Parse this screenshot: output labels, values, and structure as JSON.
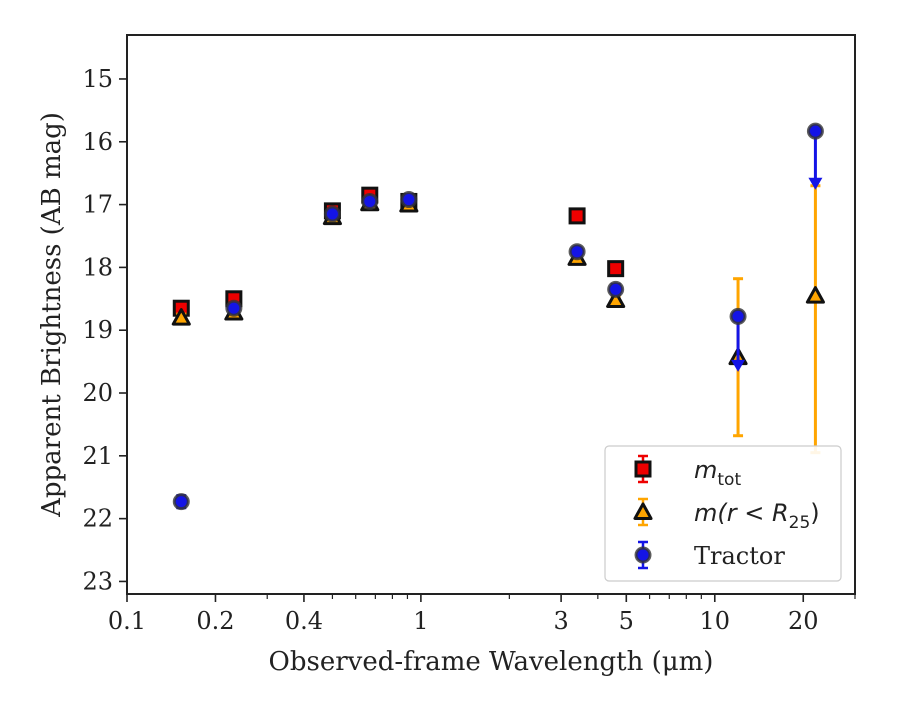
{
  "chart_data": {
    "type": "scatter",
    "xlabel": "Observed-frame Wavelength (μm)",
    "ylabel": "Apparent Brightness (AB mag)",
    "x_scale": "log",
    "xlim": [
      0.1,
      30
    ],
    "ylim": [
      23.2,
      14.3
    ],
    "y_inverted": true,
    "x_ticks": [
      {
        "value": 0.1,
        "label": "0.1"
      },
      {
        "value": 0.2,
        "label": "0.2"
      },
      {
        "value": 0.4,
        "label": "0.4"
      },
      {
        "value": 1,
        "label": "1"
      },
      {
        "value": 3,
        "label": "3"
      },
      {
        "value": 5,
        "label": "5"
      },
      {
        "value": 10,
        "label": "10"
      },
      {
        "value": 20,
        "label": "20"
      }
    ],
    "y_ticks": [
      {
        "value": 15,
        "label": "15"
      },
      {
        "value": 16,
        "label": "16"
      },
      {
        "value": 17,
        "label": "17"
      },
      {
        "value": 18,
        "label": "18"
      },
      {
        "value": 19,
        "label": "19"
      },
      {
        "value": 20,
        "label": "20"
      },
      {
        "value": 21,
        "label": "21"
      },
      {
        "value": 22,
        "label": "22"
      },
      {
        "value": 23,
        "label": "23"
      }
    ],
    "grid": false,
    "legend_position": "lower-right",
    "series": [
      {
        "name": "m_tot",
        "legend_main": "m",
        "legend_sub": "tot",
        "marker": "square",
        "color": "#ee0000",
        "points": [
          {
            "x": 0.153,
            "y": 18.65,
            "err": 0.06
          },
          {
            "x": 0.231,
            "y": 18.5,
            "err": 0.05
          },
          {
            "x": 0.5,
            "y": 17.1,
            "err": 0.04
          },
          {
            "x": 0.67,
            "y": 16.85,
            "err": 0.04
          },
          {
            "x": 0.91,
            "y": 16.95,
            "err": 0.04
          },
          {
            "x": 3.4,
            "y": 17.18,
            "err": 0.04
          },
          {
            "x": 4.6,
            "y": 18.02,
            "err": 0.05
          }
        ]
      },
      {
        "name": "m(r < R_25)",
        "legend_main": "m(r < R",
        "legend_sub": "25",
        "legend_tail": ")",
        "marker": "triangle",
        "color": "#ffa500",
        "points": [
          {
            "x": 0.153,
            "y": 18.8,
            "err": 0.06
          },
          {
            "x": 0.231,
            "y": 18.72,
            "err": 0.05
          },
          {
            "x": 0.5,
            "y": 17.2,
            "err": 0.04
          },
          {
            "x": 0.67,
            "y": 16.98,
            "err": 0.04
          },
          {
            "x": 0.91,
            "y": 17.0,
            "err": 0.04
          },
          {
            "x": 3.4,
            "y": 17.85,
            "err": 0.05
          },
          {
            "x": 4.6,
            "y": 18.52,
            "err": 0.06
          },
          {
            "x": 12.0,
            "y": 19.43,
            "err_low": 18.18,
            "err_high": 20.68
          },
          {
            "x": 22.0,
            "y": 18.45,
            "err_low": 16.7,
            "err_high": 20.95
          }
        ]
      },
      {
        "name": "Tractor",
        "legend_main": "Tractor",
        "marker": "circle",
        "color": "#1414e6",
        "points": [
          {
            "x": 0.153,
            "y": 21.73,
            "err": 0.1
          },
          {
            "x": 0.231,
            "y": 18.65,
            "err": 0.06
          },
          {
            "x": 0.5,
            "y": 17.15,
            "err": 0.05
          },
          {
            "x": 0.67,
            "y": 16.95,
            "err": 0.05
          },
          {
            "x": 0.91,
            "y": 16.92,
            "err": 0.05
          },
          {
            "x": 3.4,
            "y": 17.75,
            "err": 0.06
          },
          {
            "x": 4.6,
            "y": 18.35,
            "err": 0.08
          },
          {
            "x": 12.0,
            "y": 18.78,
            "upper_limit_to": 19.6
          },
          {
            "x": 22.0,
            "y": 15.83,
            "upper_limit_to": 16.7
          }
        ]
      }
    ]
  }
}
